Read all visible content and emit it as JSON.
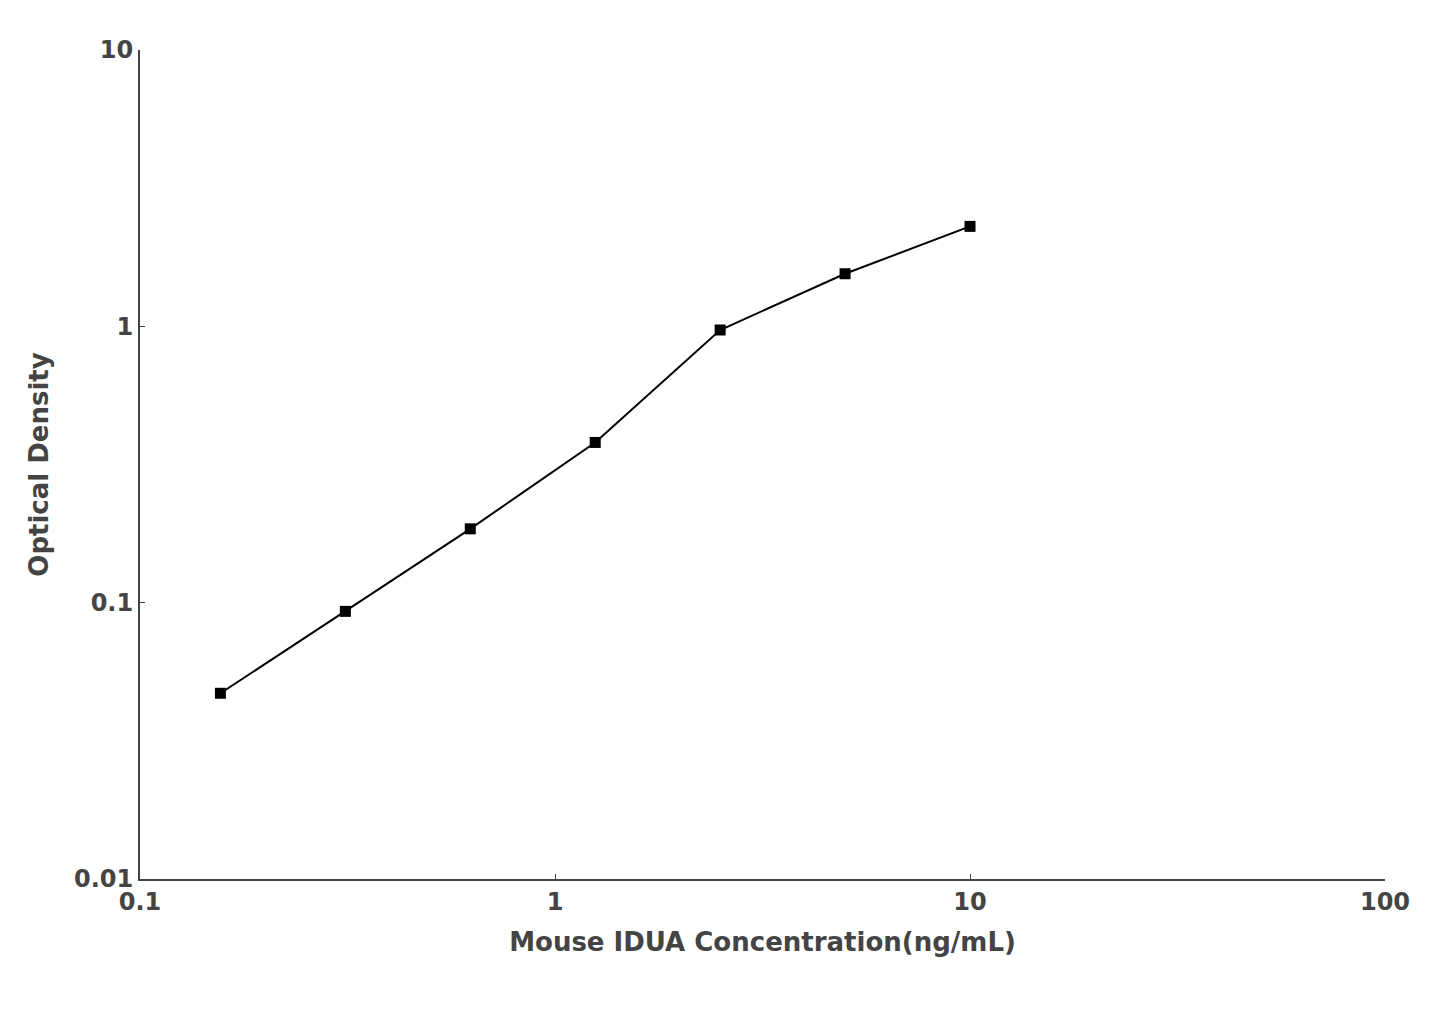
{
  "chart_data": {
    "type": "line",
    "x": [
      0.15625,
      0.3125,
      0.625,
      1.25,
      2.5,
      5.0,
      10.0
    ],
    "values": [
      0.047,
      0.093,
      0.185,
      0.38,
      0.97,
      1.55,
      2.3
    ],
    "xlabel": "Mouse IDUA Concentration(ng/mL)",
    "ylabel": "Optical Density",
    "xlim": [
      0.1,
      100
    ],
    "ylim": [
      0.01,
      10
    ],
    "xticks": [
      0.1,
      1,
      10,
      100
    ],
    "yticks": [
      0.01,
      0.1,
      1,
      10
    ],
    "log": true,
    "grid": false,
    "color": "#000000",
    "marker": "square"
  }
}
